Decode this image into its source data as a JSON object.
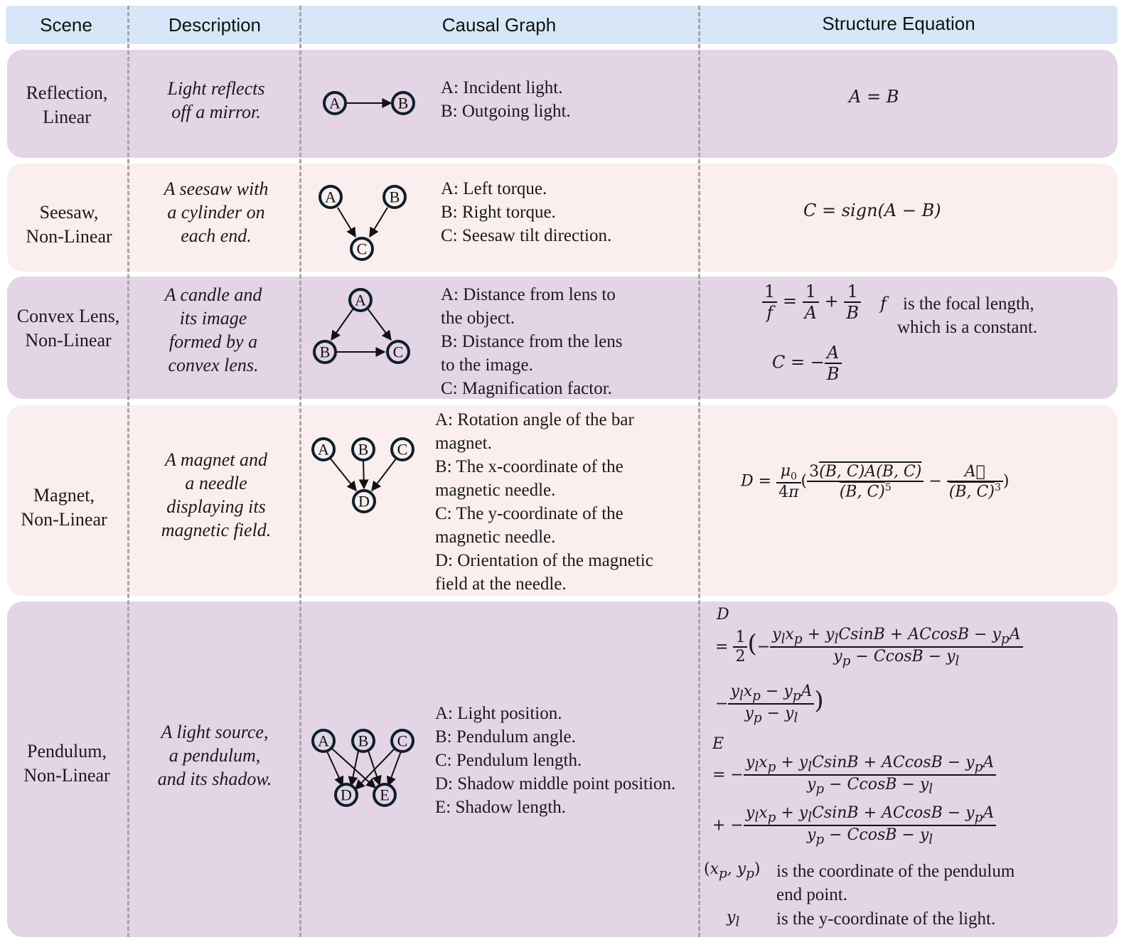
{
  "header": {
    "scene": "Scene",
    "description": "Description",
    "graph": "Causal Graph",
    "equation": "Structure Equation"
  },
  "rows": [
    {
      "scene_l1": "Reflection,",
      "scene_l2": "Linear",
      "desc": [
        "Light reflects",
        "off a mirror."
      ],
      "vars": [
        "A: Incident light.",
        "B: Outgoing light."
      ],
      "equation": "A = B"
    },
    {
      "scene_l1": "Seesaw,",
      "scene_l2": "Non-Linear",
      "desc": [
        "A seesaw with",
        "a cylinder on",
        "each end."
      ],
      "vars": [
        "A: Left torque.",
        "B: Right torque.",
        "C: Seesaw tilt direction."
      ],
      "equation": "C = sign(A − B)"
    },
    {
      "scene_l1": "Convex Lens,",
      "scene_l2": "Non-Linear",
      "desc": [
        "A candle and",
        "its image",
        "formed by a",
        "convex lens."
      ],
      "vars": [
        "A: Distance from lens to",
        "the object.",
        "B: Distance from the lens",
        "to the image.",
        "C: Magnification factor."
      ],
      "eq_f": "f",
      "note": [
        "is the focal length,",
        "which is a constant."
      ]
    },
    {
      "scene_l1": "Magnet,",
      "scene_l2": "Non-Linear",
      "desc": [
        "A magnet and",
        "a needle",
        "displaying its",
        "magnetic field."
      ],
      "vars": [
        "A: Rotation angle of the bar",
        "magnet.",
        "B: The x-coordinate of the",
        "magnetic needle.",
        "C: The y-coordinate of the",
        "magnetic needle.",
        "D: Orientation of the magnetic",
        "field at the needle."
      ]
    },
    {
      "scene_l1": "Pendulum,",
      "scene_l2": "Non-Linear",
      "desc": [
        "A light source,",
        "a pendulum,",
        "and its shadow."
      ],
      "vars": [
        "A: Light position.",
        "B: Pendulum angle.",
        "C: Pendulum length.",
        "D: Shadow middle point position.",
        "E: Shadow length."
      ],
      "note1": [
        "is the coordinate of the pendulum",
        "end point."
      ],
      "note2": "is the y-coordinate of the light."
    }
  ],
  "nodes": {
    "a": "A",
    "b": "B",
    "c": "C",
    "d": "D",
    "e": "E"
  }
}
